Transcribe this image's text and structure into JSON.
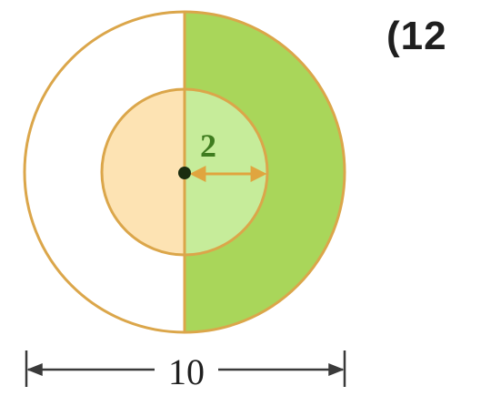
{
  "problem": {
    "number_label": "(12"
  },
  "diagram": {
    "inner_radius_label": "2",
    "outer_diameter_label": "10",
    "colors": {
      "circle_stroke": "#dba64a",
      "outer_green": "#a9d65a",
      "inner_green": "#c6ec9a",
      "inner_orange": "#fde3b3",
      "label_green": "#3f7c1f",
      "arrow_orange": "#e0a53f",
      "dimension_line": "#3a3a3a",
      "center_dot": "#1b2d10"
    }
  }
}
